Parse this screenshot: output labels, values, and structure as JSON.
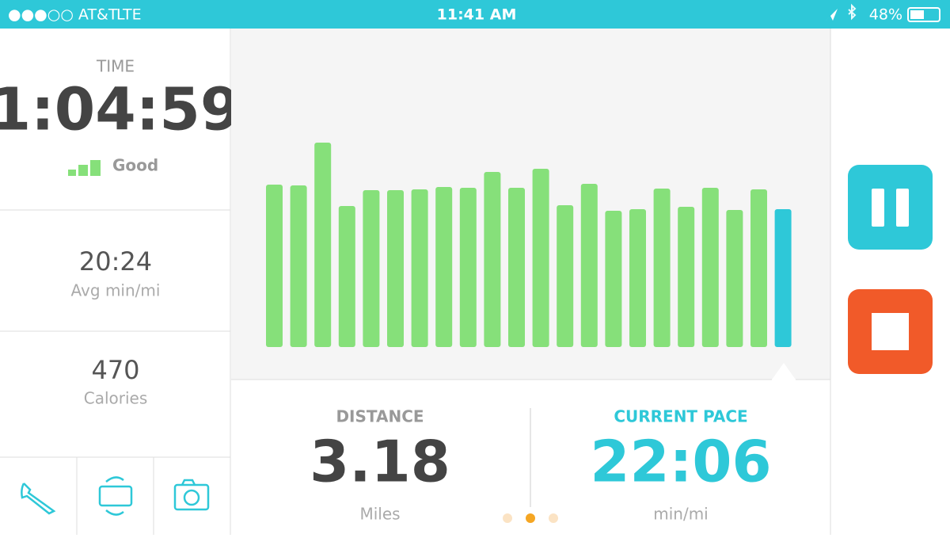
{
  "status_bar": {
    "carrier": "●●●○○ AT&T",
    "network": "LTE",
    "time": "11:41 AM",
    "battery": "48%"
  },
  "stats": {
    "time_label": "TIME",
    "time_value": "1:04:59",
    "signal": "Good",
    "avg_pace": "20:24",
    "avg_pace_unit": "Avg min/mi",
    "calories": "470",
    "calories_unit": "Calories"
  },
  "chart_data": {
    "type": "bar",
    "values": [
      205,
      204,
      258,
      178,
      198,
      198,
      199,
      202,
      201,
      221,
      201,
      225,
      179,
      206,
      172,
      174,
      200,
      177,
      201,
      173,
      199,
      174
    ],
    "color": "#86e07a",
    "current_color": "#2ec8d8"
  },
  "summary": {
    "distance_label": "DISTANCE",
    "distance": "3.18",
    "distance_unit": "Miles",
    "pace_label": "CURRENT PACE",
    "pace": "22:06",
    "pace_unit": "min/mi"
  }
}
